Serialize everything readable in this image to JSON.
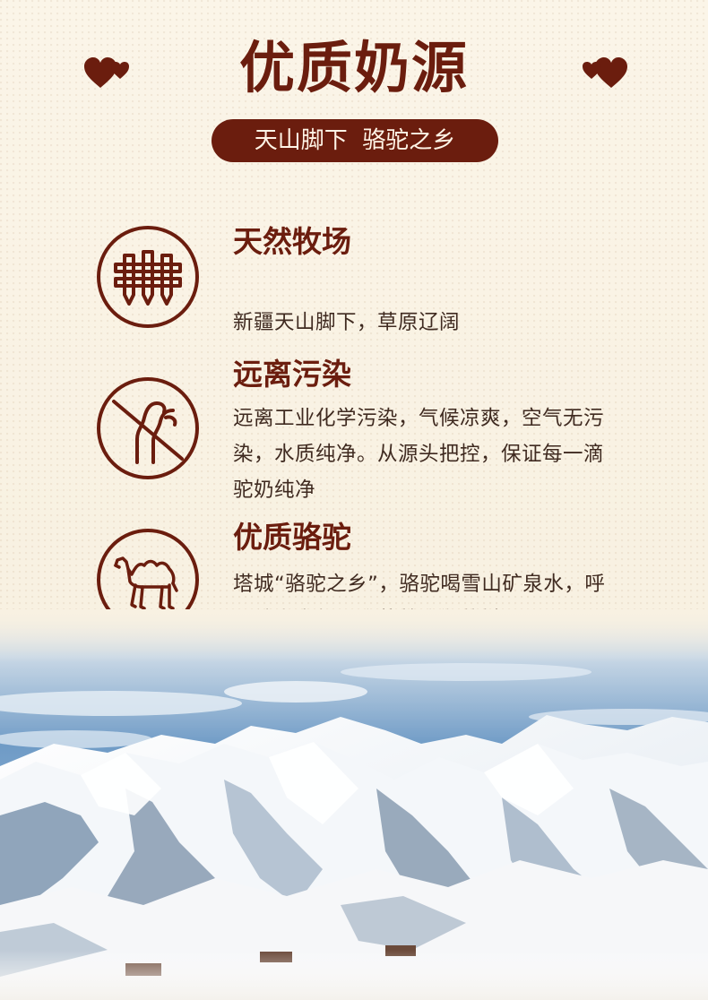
{
  "header": {
    "title": "优质奶源",
    "subtitle": "天山脚下  骆驼之乡"
  },
  "features": [
    {
      "icon": "fence-icon",
      "title": "天然牧场",
      "text": "新疆天山脚下，草原辽阔"
    },
    {
      "icon": "no-pollution-icon",
      "title": "远离污染",
      "text": "远离工业化学污染，气候凉爽，空气无污染，水质纯净。从源头把控，保证每一滴驼奶纯净"
    },
    {
      "icon": "camel-icon",
      "title": "优质骆驼",
      "text": "塔城“骆驼之乡”，骆驼喝雪山矿泉水，呼吸纯净空气，吃营养均衡草料"
    }
  ],
  "colors": {
    "brand_brown": "#6b1d0e",
    "background": "#f8f1e2",
    "text_dark": "#3f2a20",
    "sky_blue": "#7fa6cc",
    "snow": "#f2f5f8"
  },
  "decorations": [
    "hearts-icon",
    "snow-mountain-image"
  ]
}
